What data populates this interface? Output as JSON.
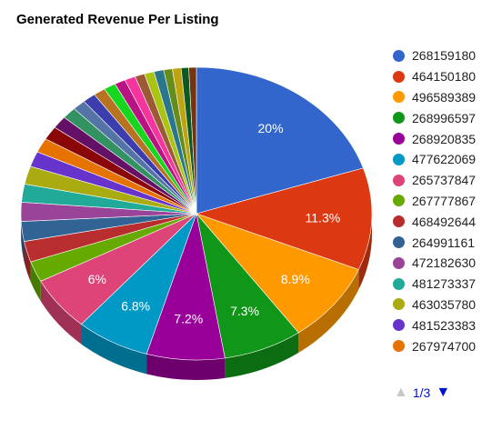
{
  "chart_data": {
    "type": "pie",
    "title": "Generated Revenue Per Listing",
    "is3D": true,
    "legend_position": "right",
    "slices": [
      {
        "label": "268159180",
        "value": 20.0,
        "color": "#3366cc",
        "show_pct": "20%"
      },
      {
        "label": "464150180",
        "value": 11.3,
        "color": "#dc3912",
        "show_pct": "11.3%"
      },
      {
        "label": "496589389",
        "value": 8.9,
        "color": "#ff9900",
        "show_pct": "8.9%"
      },
      {
        "label": "268996597",
        "value": 7.3,
        "color": "#109618",
        "show_pct": "7.3%"
      },
      {
        "label": "268920835",
        "value": 7.2,
        "color": "#990099",
        "show_pct": "7.2%"
      },
      {
        "label": "477622069",
        "value": 6.8,
        "color": "#0099c6",
        "show_pct": "6.8%"
      },
      {
        "label": "265737847",
        "value": 6.0,
        "color": "#dd4477",
        "show_pct": "6%"
      },
      {
        "label": "267777867",
        "value": 2.3,
        "color": "#66aa00",
        "show_pct": ""
      },
      {
        "label": "468492644",
        "value": 2.3,
        "color": "#b82e2e",
        "show_pct": ""
      },
      {
        "label": "264991161",
        "value": 2.2,
        "color": "#316395",
        "show_pct": ""
      },
      {
        "label": "472182630",
        "value": 2.1,
        "color": "#994499",
        "show_pct": ""
      },
      {
        "label": "481273337",
        "value": 2.0,
        "color": "#22aa99",
        "show_pct": ""
      },
      {
        "label": "463035780",
        "value": 2.0,
        "color": "#aaaa11",
        "show_pct": ""
      },
      {
        "label": "481523383",
        "value": 1.7,
        "color": "#6633cc",
        "show_pct": ""
      },
      {
        "label": "267974700",
        "value": 1.6,
        "color": "#e67300",
        "show_pct": ""
      },
      {
        "label": "",
        "value": 1.5,
        "color": "#8b0707",
        "show_pct": ""
      },
      {
        "label": "",
        "value": 1.4,
        "color": "#651067",
        "show_pct": ""
      },
      {
        "label": "",
        "value": 1.3,
        "color": "#329262",
        "show_pct": ""
      },
      {
        "label": "",
        "value": 1.2,
        "color": "#5574a6",
        "show_pct": ""
      },
      {
        "label": "",
        "value": 1.2,
        "color": "#3b3eac",
        "show_pct": ""
      },
      {
        "label": "",
        "value": 1.1,
        "color": "#b77322",
        "show_pct": ""
      },
      {
        "label": "",
        "value": 1.1,
        "color": "#16d620",
        "show_pct": ""
      },
      {
        "label": "",
        "value": 1.0,
        "color": "#b91383",
        "show_pct": ""
      },
      {
        "label": "",
        "value": 1.0,
        "color": "#f4359e",
        "show_pct": ""
      },
      {
        "label": "",
        "value": 0.9,
        "color": "#9c5935",
        "show_pct": ""
      },
      {
        "label": "",
        "value": 0.9,
        "color": "#a9c413",
        "show_pct": ""
      },
      {
        "label": "",
        "value": 0.9,
        "color": "#2a778d",
        "show_pct": ""
      },
      {
        "label": "",
        "value": 0.8,
        "color": "#668d1c",
        "show_pct": ""
      },
      {
        "label": "",
        "value": 0.8,
        "color": "#bea413",
        "show_pct": ""
      },
      {
        "label": "",
        "value": 0.7,
        "color": "#0c5922",
        "show_pct": ""
      },
      {
        "label": "",
        "value": 0.7,
        "color": "#743411",
        "show_pct": ""
      }
    ]
  },
  "legend": {
    "items": [
      {
        "label": "268159180",
        "color": "#3366cc"
      },
      {
        "label": "464150180",
        "color": "#dc3912"
      },
      {
        "label": "496589389",
        "color": "#ff9900"
      },
      {
        "label": "268996597",
        "color": "#109618"
      },
      {
        "label": "268920835",
        "color": "#990099"
      },
      {
        "label": "477622069",
        "color": "#0099c6"
      },
      {
        "label": "265737847",
        "color": "#dd4477"
      },
      {
        "label": "267777867",
        "color": "#66aa00"
      },
      {
        "label": "468492644",
        "color": "#b82e2e"
      },
      {
        "label": "264991161",
        "color": "#316395"
      },
      {
        "label": "472182630",
        "color": "#994499"
      },
      {
        "label": "481273337",
        "color": "#22aa99"
      },
      {
        "label": "463035780",
        "color": "#aaaa11"
      },
      {
        "label": "481523383",
        "color": "#6633cc"
      },
      {
        "label": "267974700",
        "color": "#e67300"
      }
    ],
    "pager": {
      "text": "1/3",
      "prev_icon": "triangle-up-icon",
      "next_icon": "triangle-down-icon",
      "prev_glyph": "▲",
      "next_glyph": "▼"
    }
  }
}
